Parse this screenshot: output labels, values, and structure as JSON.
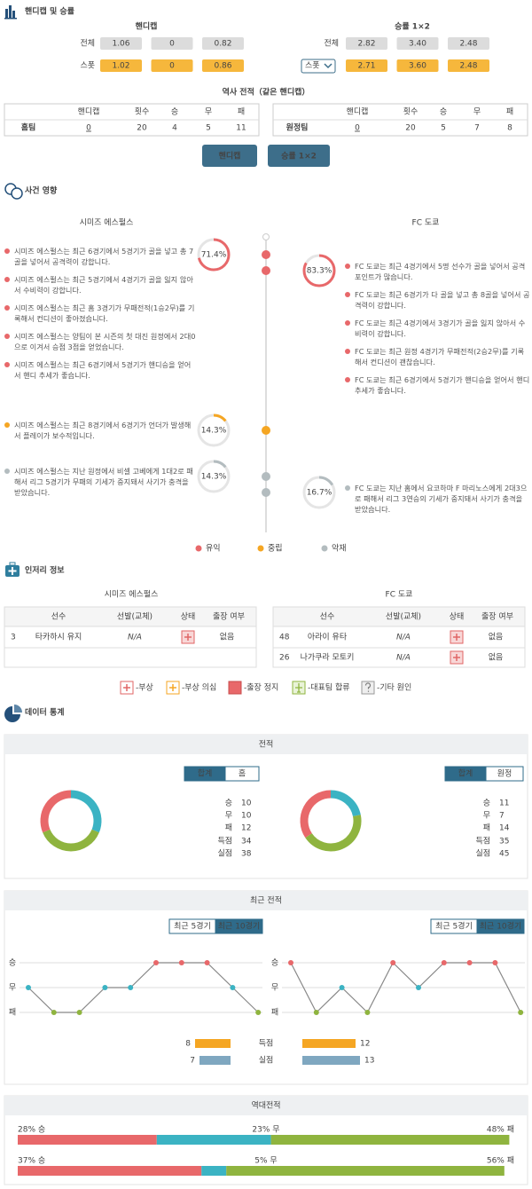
{
  "handicap": {
    "title": "핸디캡 및 승률",
    "handicap_header": "핸디캡",
    "odds_header": "승률 1×2",
    "rows": [
      {
        "label": "전체",
        "handicap": [
          "1.06",
          "0",
          "0.82"
        ],
        "odds": [
          "2.82",
          "3.40",
          "2.48"
        ]
      },
      {
        "label": "스폿",
        "handicap": [
          "1.02",
          "0",
          "0.86"
        ],
        "odds": [
          "2.71",
          "3.60",
          "2.48"
        ]
      }
    ],
    "history_title": "역사 전적（같은 핸디캡）",
    "history_headers": [
      "핸디캡",
      "횟수",
      "승",
      "무",
      "패"
    ],
    "history_rows": [
      [
        "홈팀",
        0,
        20,
        4,
        5,
        11
      ],
      [
        "원정팀",
        0,
        20,
        5,
        7,
        8
      ]
    ],
    "buttons": [
      "핸디캡",
      "승률 1×2"
    ]
  },
  "impact": {
    "title": "사건 영향",
    "teams": [
      "시미즈 에스펄스",
      "FC 도쿄"
    ],
    "legend": {
      "good": "유익",
      "neutral": "중립",
      "bad": "악재"
    },
    "colors": {
      "good": "#e8686a",
      "neutral": "#f5a623",
      "bad": "#b3bcbf"
    },
    "home": {
      "good": {
        "pct": 71.4,
        "pct_label": "71.4%",
        "items": [
          "시미즈 에스펄스는 최근 6경기에서 5경기가 골을 넣고 총 7골을 넣어서 공격력이 강합니다.",
          "시미즈 에스펄스는 최근 5경기에서 4경기가 골을 잃지 않아서 수비력이 강합니다.",
          "시미즈 에스펄스는 최근 홈 3경기가 무패전적(1승2무)를 기록해서 컨디션이 좋아졌습니다.",
          "시미즈 에스펄스는 양팀이 본 시즌의 첫 대진 원정에서 2대0으로 이겨서 승점 3점을 얻었습니다.",
          "시미즈 에스펄스는 최근 6경기에서 5경기가 핸디승을 얻어서 핸디 추세가 좋습니다."
        ]
      },
      "neutral": {
        "pct": 14.3,
        "pct_label": "14.3%",
        "items": [
          "시미즈 에스펄스는 최근 8경기에서 6경기가 언더가 발생해서 플레이가 보수적입니다."
        ]
      },
      "bad": {
        "pct": 14.3,
        "pct_label": "14.3%",
        "items": [
          "시미즈 에스펄스는 지난 원정에서 비셀 고베에게 1대2로 패해서 리그 5경기가 무패의 기세가 중지돼서 사기가 충격을 받았습니다."
        ]
      }
    },
    "away": {
      "good": {
        "pct": 83.3,
        "pct_label": "83.3%",
        "items": [
          "FC 도쿄는 최근 4경기에서 5명 선수가 골을 넣어서 공격 포인트가 많습니다.",
          "FC 도쿄는 최근 6경기가 다 골을 넣고 총 8골을 넣어서 공격력이 강합니다.",
          "FC 도쿄는 최근 4경기에서 3경기가 골을 잃지 않아서 수비력이 강합니다.",
          "FC 도쿄는 최근 원정 4경기가 무패전적(2승2무)를 기록해서 컨디션이 괜찮습니다.",
          "FC 도쿄는 최근 6경기에서 5경기가 핸디승을 얻어서 핸디 추세가 좋습니다."
        ]
      },
      "bad": {
        "pct": 16.7,
        "pct_label": "16.7%",
        "items": [
          "FC 도쿄는 지난 홈에서 요코하마 F 마리노스에게 2대3으로 패해서 리그 3연승의 기세가 중지돼서 사기가 충격을 받았습니다."
        ]
      }
    }
  },
  "injury": {
    "title": "인저리 정보",
    "headers": [
      "선수",
      "선발(교체)",
      "상태",
      "출장 여부"
    ],
    "home": [
      [
        3,
        "타카하시 유지",
        "N/A",
        "없음"
      ]
    ],
    "away": [
      [
        48,
        "아라이 유타",
        "N/A",
        "없음"
      ],
      [
        26,
        "나가쿠라 모토키",
        "N/A",
        "없음"
      ]
    ],
    "legend": [
      "-부상",
      "-부상 의심",
      "-출장 정지",
      "-대표팀 합류",
      "-기타 원인"
    ]
  },
  "stats": {
    "title": "데이터 통계",
    "record": {
      "title": "전적",
      "tabs": [
        [
          "합계",
          "홈"
        ],
        [
          "합계",
          "원정"
        ]
      ],
      "labels": [
        "승",
        "무",
        "패",
        "득점",
        "실점"
      ],
      "home": [
        10,
        10,
        12,
        34,
        38
      ],
      "away": [
        11,
        7,
        14,
        35,
        45
      ],
      "colors": [
        "#e8686a",
        "#3bb3c3",
        "#8fb43f"
      ]
    },
    "recent": {
      "title": "최근 전적",
      "tabs": [
        "최근 5경기",
        "최근 10경기"
      ],
      "ylim": [
        -1,
        1
      ],
      "yticks": [
        {
          "value": 1,
          "label": "승"
        },
        {
          "value": 0,
          "label": "무"
        },
        {
          "value": -1,
          "label": "패"
        }
      ],
      "home": [
        0,
        -1,
        -1,
        0,
        0,
        1,
        1,
        1,
        0,
        -1
      ],
      "away": [
        1,
        -1,
        0,
        -1,
        1,
        0,
        1,
        1,
        1,
        -1
      ],
      "goal_labels": [
        "득점",
        "실점"
      ],
      "goal_colors": [
        "#f5a623",
        "#7fa7c0"
      ],
      "home_goals": [
        8,
        7
      ],
      "away_goals": [
        12,
        13
      ]
    },
    "h2h": {
      "title": "역대전적",
      "rows": [
        {
          "values": [
            28,
            23,
            48
          ],
          "value_labels": [
            "28% 승",
            "23% 무",
            "48% 패"
          ]
        },
        {
          "values": [
            37,
            5,
            56
          ],
          "value_labels": [
            "37% 승",
            "5% 무",
            "56% 패"
          ]
        }
      ]
    }
  }
}
